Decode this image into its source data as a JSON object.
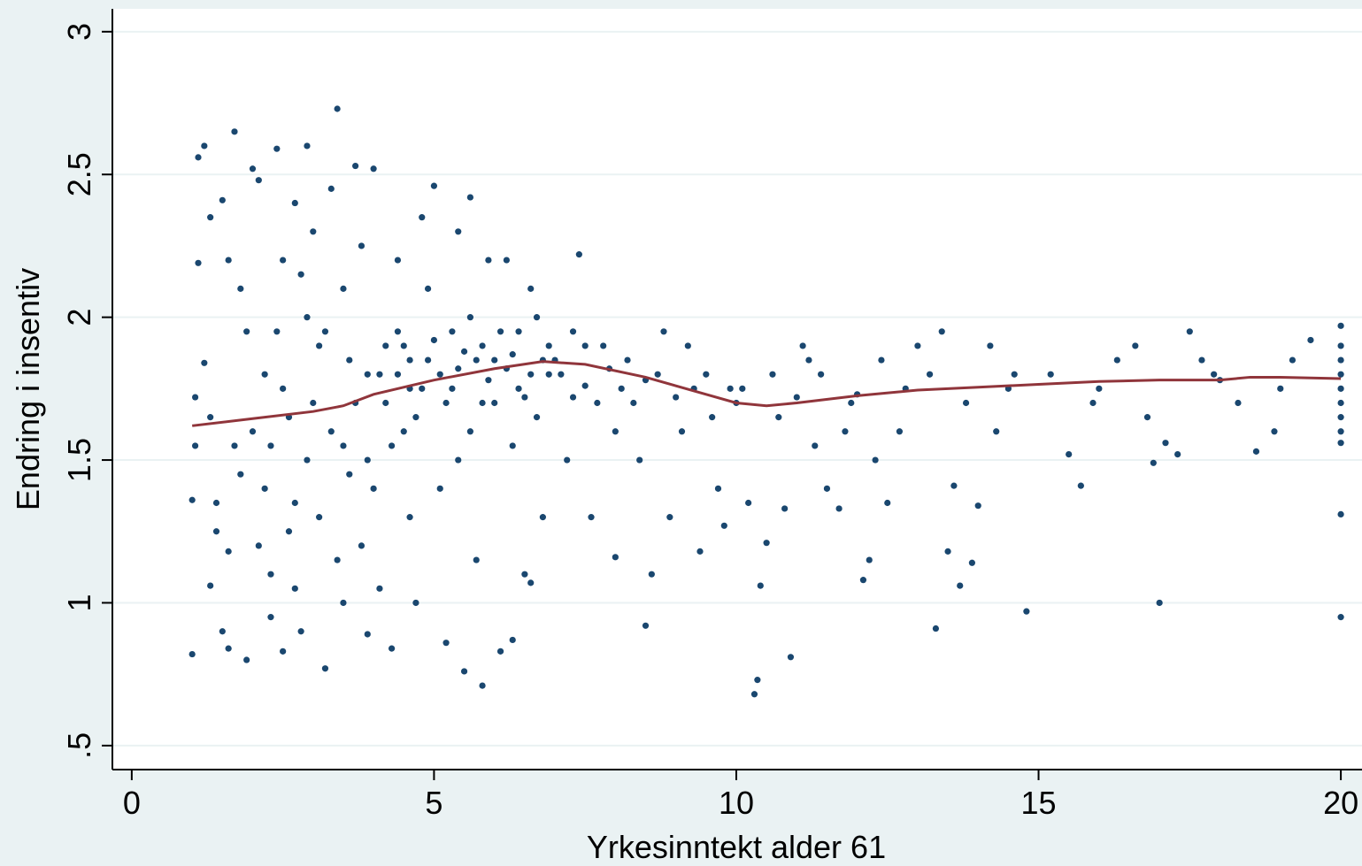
{
  "chart_data": {
    "type": "scatter",
    "x_label": "Yrkesinntekt alder 61",
    "y_label": "Endring i insentiv",
    "xlim": [
      -0.32,
      20.35
    ],
    "ylim": [
      0.416,
      3.08
    ],
    "xticks": [
      0,
      5,
      10,
      15,
      20
    ],
    "yticks": [
      3,
      2.5,
      2,
      1.5,
      1,
      {
        "value": 0.5,
        "label": ".5"
      }
    ],
    "grid": true,
    "series": [
      {
        "type": "scatter",
        "color": "#1a476f",
        "x": [
          1.0,
          1.0,
          1.05,
          1.1,
          1.2,
          1.1,
          1.3,
          1.2,
          1.4,
          1.3,
          1.5,
          1.5,
          1.6,
          1.7,
          1.6,
          1.8,
          1.9,
          1.8,
          1.05,
          1.3,
          1.7,
          1.9,
          1.4,
          1.6,
          2.0,
          2.1,
          2.2,
          2.3,
          2.4,
          2.5,
          2.6,
          2.7,
          2.8,
          2.9,
          2.9,
          2.2,
          2.4,
          2.6,
          2.8,
          2.1,
          2.3,
          2.5,
          2.7,
          2.9,
          2.0,
          2.5,
          2.7,
          2.3,
          3.0,
          3.1,
          3.2,
          3.3,
          3.4,
          3.5,
          3.6,
          3.7,
          3.8,
          3.9,
          3.1,
          3.3,
          3.5,
          3.7,
          3.9,
          3.2,
          3.4,
          3.6,
          3.8,
          3.0,
          3.5,
          3.9,
          4.0,
          4.1,
          4.2,
          4.3,
          4.4,
          4.5,
          4.6,
          4.7,
          4.8,
          4.9,
          4.0,
          4.2,
          4.4,
          4.6,
          4.8,
          4.1,
          4.3,
          4.5,
          4.7,
          4.9,
          5.0,
          4.6,
          4.4,
          5.1,
          5.2,
          5.3,
          5.4,
          5.5,
          5.6,
          5.7,
          5.8,
          5.9,
          5.2,
          5.4,
          5.6,
          5.8,
          5.1,
          5.3,
          5.5,
          5.7,
          5.9,
          5.0,
          5.4,
          5.6,
          5.8,
          6.0,
          6.1,
          6.2,
          6.3,
          6.4,
          6.5,
          6.6,
          6.7,
          6.8,
          6.9,
          6.0,
          6.2,
          6.4,
          6.6,
          6.8,
          6.1,
          6.3,
          6.5,
          6.7,
          6.9,
          6.3,
          6.6,
          7.0,
          7.2,
          7.4,
          7.5,
          7.6,
          7.8,
          8.0,
          7.1,
          7.3,
          7.7,
          7.9,
          8.0,
          7.5,
          7.3,
          8.2,
          8.4,
          8.5,
          8.6,
          8.7,
          8.9,
          9.0,
          9.2,
          9.4,
          9.6,
          9.8,
          9.9,
          8.3,
          8.8,
          9.1,
          9.5,
          9.7,
          8.1,
          8.5,
          9.3,
          10.0,
          10.2,
          10.3,
          10.4,
          10.5,
          10.6,
          10.8,
          10.9,
          11.1,
          11.3,
          11.5,
          11.7,
          11.9,
          10.1,
          10.7,
          11.0,
          11.4,
          11.8,
          10.35,
          11.2,
          12.0,
          12.1,
          12.2,
          12.5,
          12.8,
          13.0,
          13.3,
          13.5,
          13.6,
          13.7,
          13.9,
          14.0,
          14.2,
          14.5,
          14.8,
          12.4,
          12.7,
          13.2,
          13.8,
          14.3,
          14.6,
          13.4,
          12.3,
          15.2,
          15.5,
          15.7,
          16.0,
          16.3,
          16.8,
          17.0,
          17.1,
          17.3,
          17.5,
          17.9,
          18.3,
          18.6,
          18.9,
          19.2,
          19.5,
          16.6,
          17.7,
          18.0,
          19.0,
          16.9,
          15.9,
          20,
          20,
          20,
          20,
          20,
          20,
          20,
          20,
          20,
          20,
          20
        ],
        "values": [
          0.82,
          1.36,
          1.55,
          2.56,
          2.6,
          2.19,
          2.35,
          1.84,
          1.25,
          1.06,
          0.9,
          2.41,
          0.84,
          2.65,
          1.18,
          1.45,
          0.8,
          2.1,
          1.72,
          1.65,
          1.55,
          1.95,
          1.35,
          2.2,
          2.52,
          2.48,
          1.8,
          1.1,
          2.59,
          0.83,
          1.25,
          2.4,
          0.9,
          2.6,
          1.5,
          1.4,
          1.95,
          1.65,
          2.15,
          1.2,
          0.95,
          1.75,
          1.35,
          2.0,
          1.6,
          2.2,
          1.05,
          1.55,
          2.3,
          1.9,
          0.77,
          2.45,
          2.73,
          1.0,
          1.45,
          2.53,
          1.2,
          1.8,
          1.3,
          1.6,
          2.1,
          1.7,
          0.89,
          1.95,
          1.15,
          1.85,
          2.25,
          1.7,
          1.55,
          1.5,
          2.52,
          1.05,
          1.9,
          0.84,
          2.2,
          1.6,
          1.85,
          1.0,
          1.75,
          2.1,
          1.4,
          1.7,
          1.95,
          1.3,
          2.35,
          1.8,
          1.55,
          1.9,
          1.65,
          1.85,
          2.46,
          1.75,
          1.8,
          1.8,
          0.86,
          1.95,
          1.5,
          0.76,
          2.0,
          1.85,
          0.71,
          2.2,
          1.7,
          2.3,
          1.6,
          1.9,
          1.4,
          1.75,
          1.88,
          1.15,
          1.78,
          1.92,
          1.82,
          2.42,
          1.7,
          1.85,
          0.83,
          2.2,
          1.55,
          1.95,
          1.1,
          1.8,
          2.0,
          1.3,
          1.9,
          1.7,
          1.82,
          1.75,
          2.1,
          1.85,
          1.95,
          1.87,
          1.72,
          1.65,
          1.8,
          0.87,
          1.07,
          1.85,
          1.5,
          2.22,
          1.76,
          1.3,
          1.9,
          1.6,
          1.8,
          1.95,
          1.7,
          1.82,
          1.16,
          1.9,
          1.72,
          1.85,
          1.5,
          0.92,
          1.1,
          1.8,
          1.3,
          1.72,
          1.9,
          1.18,
          1.65,
          1.27,
          1.75,
          1.7,
          1.95,
          1.6,
          1.8,
          1.4,
          1.75,
          1.78,
          1.75,
          1.7,
          1.35,
          0.68,
          1.06,
          1.21,
          1.8,
          1.33,
          0.81,
          1.9,
          1.55,
          1.4,
          1.33,
          1.7,
          1.75,
          1.65,
          1.72,
          1.8,
          1.6,
          0.73,
          1.85,
          1.73,
          1.08,
          1.15,
          1.35,
          1.75,
          1.9,
          0.91,
          1.18,
          1.41,
          1.06,
          1.14,
          1.34,
          1.9,
          1.75,
          0.97,
          1.85,
          1.6,
          1.8,
          1.7,
          1.6,
          1.8,
          1.95,
          1.5,
          1.8,
          1.52,
          1.41,
          1.75,
          1.85,
          1.65,
          1.0,
          1.56,
          1.52,
          1.95,
          1.8,
          1.7,
          1.53,
          1.6,
          1.85,
          1.92,
          1.9,
          1.85,
          1.78,
          1.75,
          1.49,
          1.7,
          1.97,
          1.9,
          1.85,
          1.8,
          1.75,
          1.7,
          1.65,
          1.6,
          1.56,
          1.31,
          0.95
        ]
      },
      {
        "type": "line",
        "color": "#90353b",
        "x": [
          1,
          2,
          3,
          3.5,
          4,
          5,
          6,
          6.8,
          7.5,
          8.5,
          9.5,
          10,
          10.5,
          11,
          12,
          13,
          14,
          15,
          16,
          17,
          18,
          18.5,
          19,
          20
        ],
        "values": [
          1.62,
          1.645,
          1.67,
          1.69,
          1.73,
          1.78,
          1.82,
          1.845,
          1.835,
          1.79,
          1.73,
          1.7,
          1.69,
          1.7,
          1.725,
          1.745,
          1.755,
          1.765,
          1.775,
          1.78,
          1.78,
          1.79,
          1.79,
          1.785
        ]
      }
    ]
  }
}
